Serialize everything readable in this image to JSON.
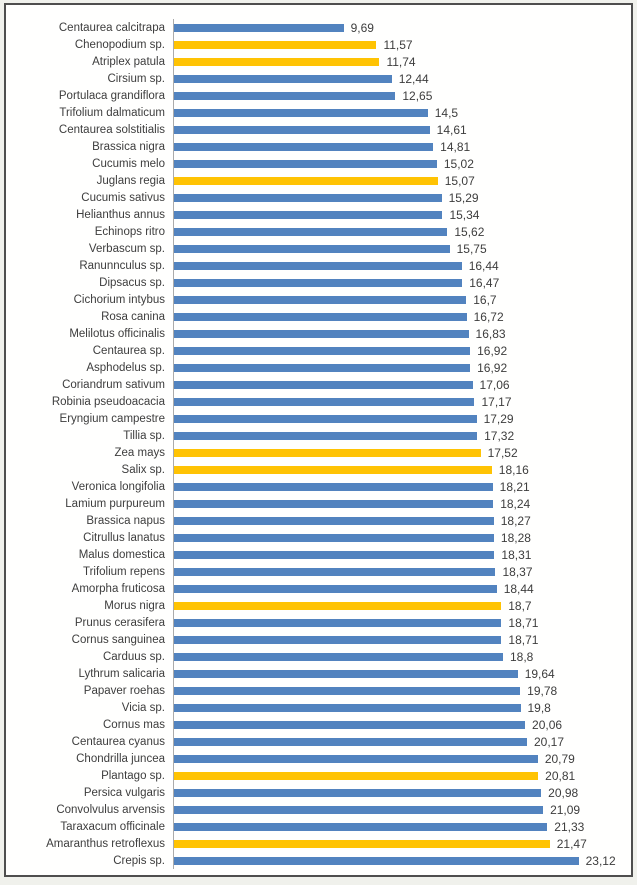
{
  "chart_data": {
    "type": "bar",
    "orientation": "horizontal",
    "title": "",
    "xlabel": "",
    "ylabel": "",
    "grid": false,
    "legend": false,
    "decimal_separator": ",",
    "colors": {
      "bar_default": "#5283BF",
      "bar_highlight": "#FFC303",
      "axis_line": "#ABABAB",
      "text": "#3D3D3D",
      "frame_border": "#4E4E4E",
      "page_background": "#F0F1EC",
      "plot_background": "#FFFFFE"
    },
    "categories": [
      "Centaurea calcitrapa",
      "Chenopodium sp.",
      "Atriplex patula",
      "Cirsium sp.",
      "Portulaca grandiflora",
      "Trifolium dalmaticum",
      "Centaurea solstitialis",
      "Brassica nigra",
      "Cucumis melo",
      "Juglans regia",
      "Cucumis sativus",
      "Helianthus annus",
      "Echinops ritro",
      "Verbascum sp.",
      "Ranunnculus sp.",
      "Dipsacus sp.",
      "Cichorium intybus",
      "Rosa canina",
      "Melilotus officinalis",
      "Centaurea sp.",
      "Asphodelus sp.",
      "Coriandrum sativum",
      "Robinia pseudoacacia",
      "Eryngium campestre",
      "Tillia sp.",
      "Zea mays",
      "Salix sp.",
      "Veronica longifolia",
      "Lamium purpureum",
      "Brassica napus",
      "Citrullus lanatus",
      "Malus domestica",
      "Trifolium repens",
      "Amorpha fruticosa",
      "Morus nigra",
      "Prunus cerasifera",
      "Cornus sanguinea",
      "Carduus sp.",
      "Lythrum salicaria",
      "Papaver roehas",
      "Vicia sp.",
      "Cornus mas",
      "Centaurea cyanus",
      "Chondrilla juncea",
      "Plantago sp.",
      "Persica vulgaris",
      "Convolvulus arvensis",
      "Taraxacum officinale",
      "Amaranthus retroflexus",
      "Crepis sp."
    ],
    "values": [
      9.69,
      11.57,
      11.74,
      12.44,
      12.65,
      14.5,
      14.61,
      14.81,
      15.02,
      15.07,
      15.29,
      15.34,
      15.62,
      15.75,
      16.44,
      16.47,
      16.7,
      16.72,
      16.83,
      16.92,
      16.92,
      17.06,
      17.17,
      17.29,
      17.32,
      17.52,
      18.16,
      18.21,
      18.24,
      18.27,
      18.28,
      18.31,
      18.37,
      18.44,
      18.7,
      18.71,
      18.71,
      18.8,
      19.64,
      19.78,
      19.8,
      20.06,
      20.17,
      20.79,
      20.81,
      20.98,
      21.09,
      21.33,
      21.47,
      23.12
    ],
    "value_labels": [
      "9,69",
      "11,57",
      "11,74",
      "12,44",
      "12,65",
      "14,5",
      "14,61",
      "14,81",
      "15,02",
      "15,07",
      "15,29",
      "15,34",
      "15,62",
      "15,75",
      "16,44",
      "16,47",
      "16,7",
      "16,72",
      "16,83",
      "16,92",
      "16,92",
      "17,06",
      "17,17",
      "17,29",
      "17,32",
      "17,52",
      "18,16",
      "18,21",
      "18,24",
      "18,27",
      "18,28",
      "18,31",
      "18,37",
      "18,44",
      "18,7",
      "18,71",
      "18,71",
      "18,8",
      "19,64",
      "19,78",
      "19,8",
      "20,06",
      "20,17",
      "20,79",
      "20,81",
      "20,98",
      "21,09",
      "21,33",
      "21,47",
      "23,12"
    ],
    "highlighted_indices": [
      1,
      2,
      9,
      25,
      26,
      34,
      44,
      48
    ]
  }
}
